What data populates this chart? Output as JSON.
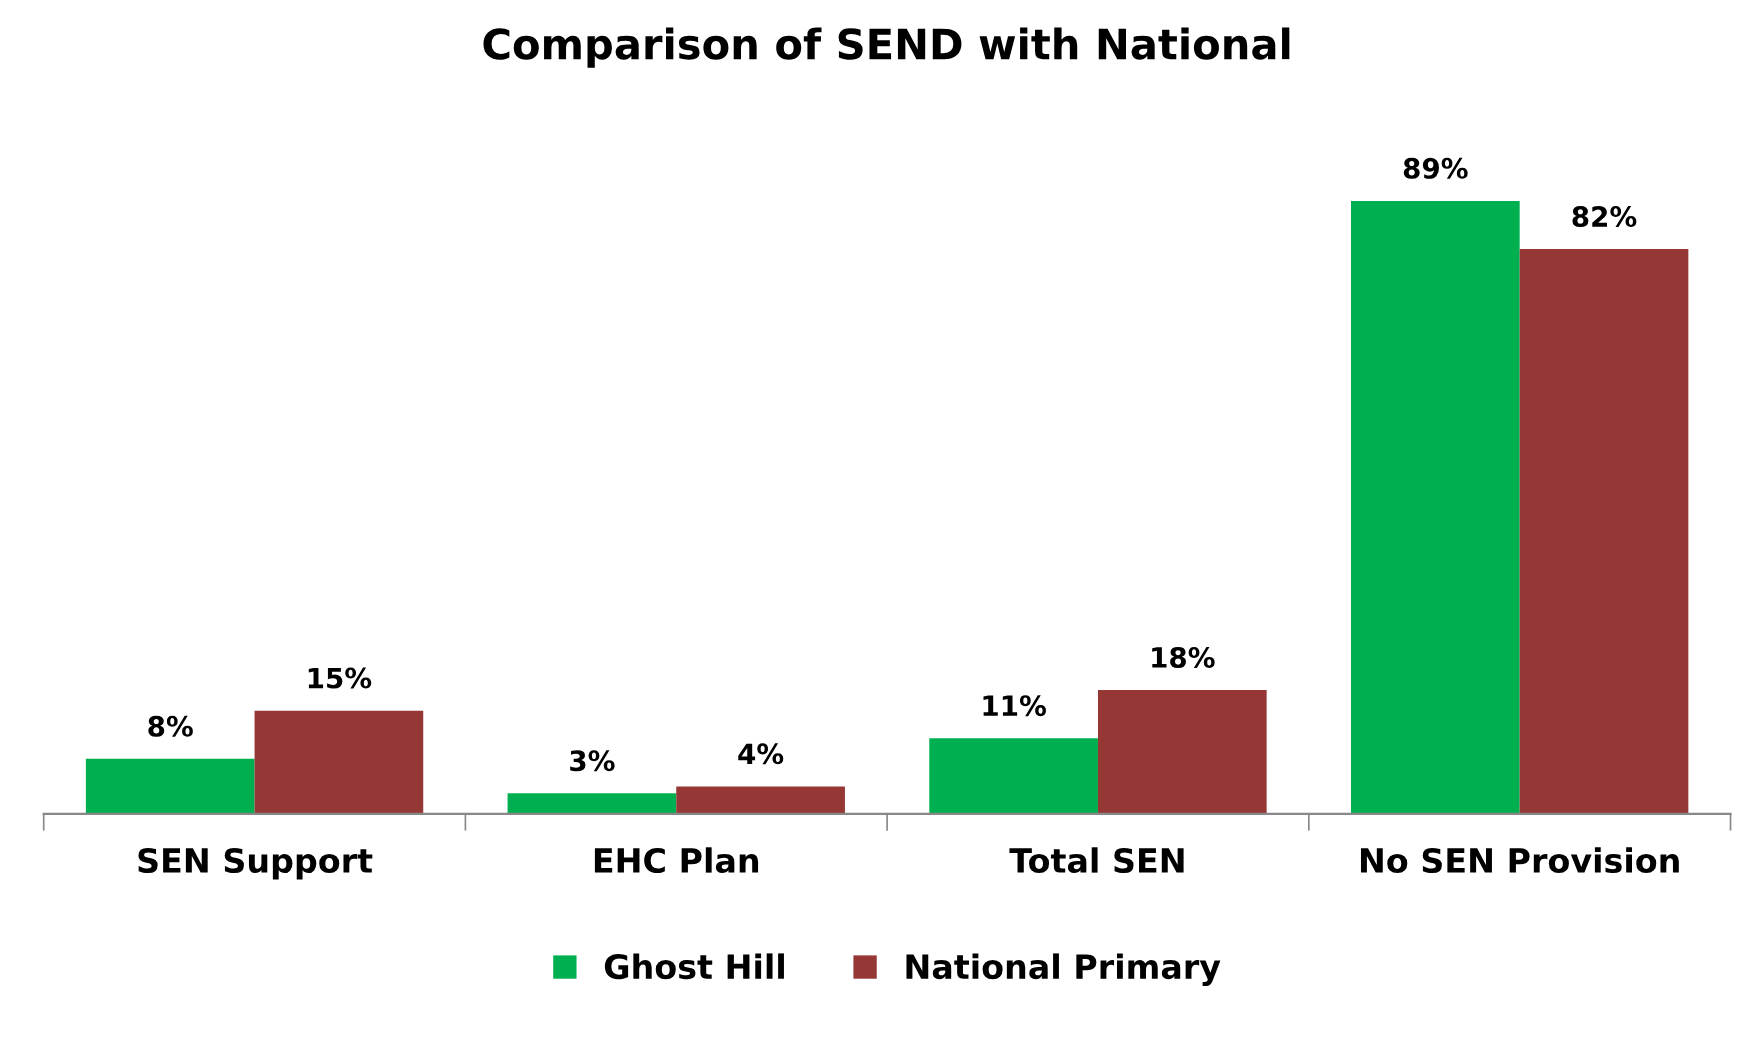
{
  "chart_data": {
    "type": "bar",
    "title": "Comparison of SEND with National",
    "categories": [
      "SEN Support",
      "EHC Plan",
      "Total SEN",
      "No SEN Provision"
    ],
    "series": [
      {
        "name": "Ghost Hill",
        "color": "#00b050",
        "values": [
          8,
          3,
          11,
          89
        ],
        "value_labels": [
          "8%",
          "3%",
          "11%",
          "89%"
        ]
      },
      {
        "name": "National Primary",
        "color": "#953735",
        "values": [
          15,
          4,
          18,
          82
        ],
        "value_labels": [
          "15%",
          "4%",
          "18%",
          "82%"
        ]
      }
    ],
    "legend": "bottom"
  }
}
